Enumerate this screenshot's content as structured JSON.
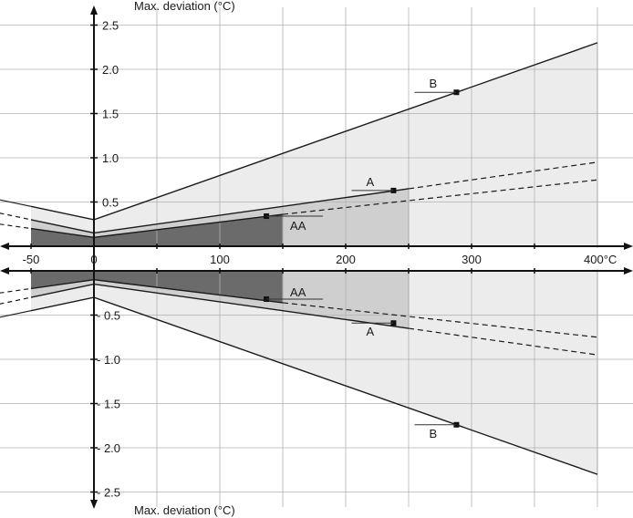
{
  "chart_data": {
    "type": "area",
    "x_unit_label": "400°C",
    "top_axis_title": "Max. deviation (°C)",
    "bottom_axis_title": "Max. deviation (°C)",
    "xlim": [
      -50,
      400
    ],
    "ylim_upper": [
      0,
      2.5
    ],
    "ylim_lower": [
      0,
      2.5
    ],
    "x_ticks": [
      -50,
      0,
      100,
      200,
      300
    ],
    "x_tick_labels": [
      "-50",
      "0",
      "100",
      "200",
      "300"
    ],
    "x_minor_ticks": [
      50,
      150,
      250,
      350
    ],
    "x_gridlines": [
      50,
      100,
      150,
      200,
      250,
      300,
      350,
      400
    ],
    "y_ticks_upper": [
      0.5,
      1.0,
      1.5,
      2.0,
      2.5
    ],
    "y_tick_labels_upper": [
      "0.5",
      "1.0",
      "1.5",
      "2.0",
      "2.5"
    ],
    "y_ticks_lower": [
      0.5,
      1.0,
      1.5,
      2.0,
      2.5
    ],
    "y_tick_labels_lower": [
      "- 0.5",
      "- 1.0",
      "- 1.5",
      "- 2.0",
      "- 2.5"
    ],
    "grid": true,
    "colors": {
      "B": "#ececec",
      "A": "#cfcfcf",
      "AA": "#6b6b6b",
      "line": "#1a1a1a",
      "grid": "#b0b0b0"
    },
    "series": [
      {
        "name": "B",
        "upper": {
          "x": [
            -50,
            0,
            400
          ],
          "y": [
            0.45,
            0.3,
            2.3
          ]
        },
        "lower": {
          "x": [
            -50,
            0,
            400
          ],
          "y": [
            -0.45,
            -0.3,
            -2.3
          ]
        },
        "marker": {
          "x": 288,
          "upper_y": 1.74,
          "lower_y": -1.74
        },
        "shaded_to": 400
      },
      {
        "name": "A",
        "upper": {
          "x": [
            -50,
            0,
            250
          ],
          "y": [
            0.3,
            0.15,
            0.65
          ]
        },
        "lower": {
          "x": [
            -50,
            0,
            250
          ],
          "y": [
            -0.3,
            -0.15,
            -0.65
          ]
        },
        "extension": {
          "x": [
            250,
            400
          ],
          "y": [
            0.65,
            0.95
          ]
        },
        "marker": {
          "x": 238,
          "upper_y": 0.63,
          "lower_y": -0.59
        },
        "shaded_to": 250
      },
      {
        "name": "AA",
        "upper": {
          "x": [
            -50,
            0,
            150
          ],
          "y": [
            0.2,
            0.1,
            0.36
          ]
        },
        "lower": {
          "x": [
            -50,
            0,
            150
          ],
          "y": [
            -0.2,
            -0.1,
            -0.36
          ]
        },
        "extension": {
          "x": [
            150,
            400
          ],
          "y": [
            0.36,
            0.75
          ]
        },
        "marker": {
          "x": 137,
          "upper_y": 0.34,
          "lower_y": -0.32
        },
        "shaded_to": 150
      }
    ]
  }
}
